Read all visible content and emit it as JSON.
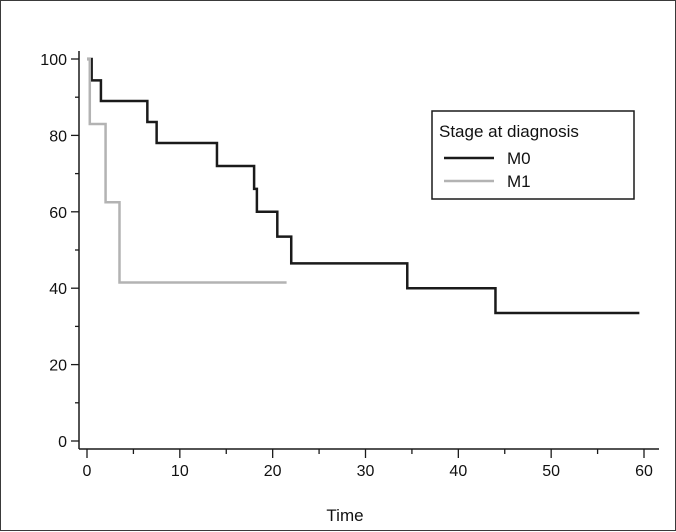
{
  "chart_data": {
    "type": "line",
    "step": true,
    "title": "",
    "xlabel": "Time",
    "ylabel": "",
    "xlim": [
      0,
      60
    ],
    "ylim": [
      0,
      100
    ],
    "x_ticks": [
      0,
      10,
      20,
      30,
      40,
      50,
      60
    ],
    "y_ticks": [
      0,
      20,
      40,
      60,
      80,
      100
    ],
    "grid": false,
    "legend": {
      "title": "Stage at diagnosis",
      "position": "top-right"
    },
    "series": [
      {
        "name": "M0",
        "color": "#1a1a1a",
        "points": [
          [
            0,
            100
          ],
          [
            0.5,
            94.4
          ],
          [
            1.5,
            89
          ],
          [
            6.5,
            83.5
          ],
          [
            7.5,
            78
          ],
          [
            14,
            72
          ],
          [
            18,
            66
          ],
          [
            18.3,
            60
          ],
          [
            20.5,
            53.5
          ],
          [
            22,
            46.5
          ],
          [
            34.5,
            40
          ],
          [
            44,
            33.5
          ],
          [
            59.5,
            33.5
          ]
        ]
      },
      {
        "name": "M1",
        "color": "#b3b3b3",
        "points": [
          [
            0,
            100
          ],
          [
            0.3,
            83
          ],
          [
            2,
            62.5
          ],
          [
            3.5,
            41.5
          ],
          [
            21.5,
            41.5
          ]
        ]
      }
    ]
  }
}
